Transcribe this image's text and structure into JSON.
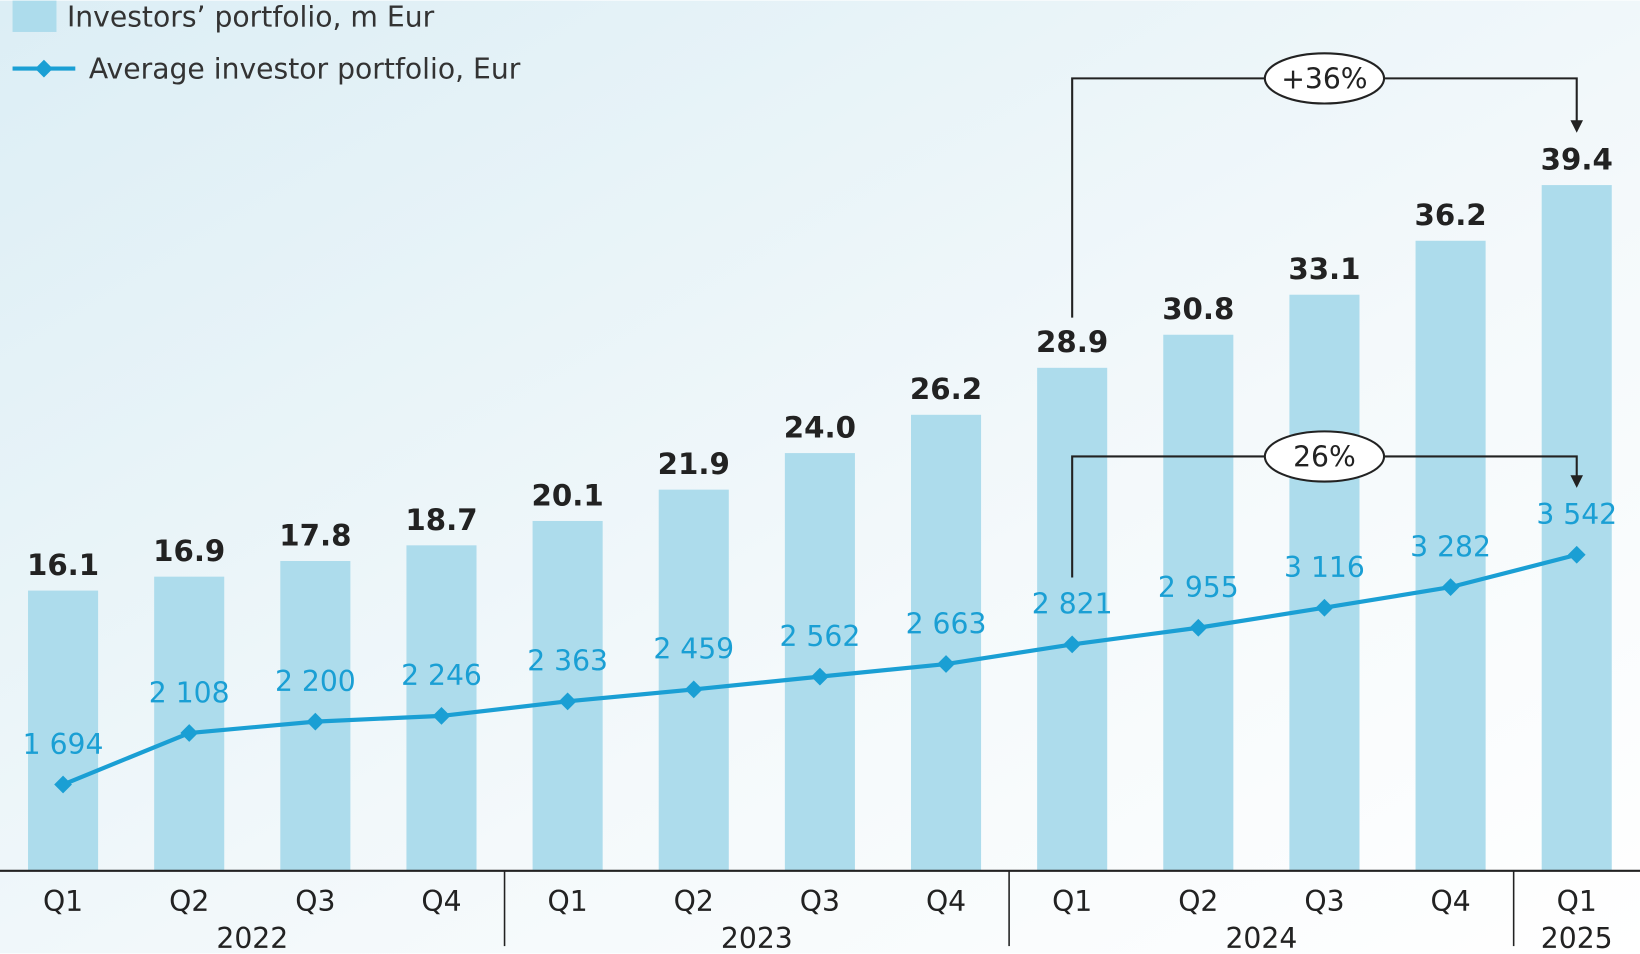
{
  "chart_data": {
    "type": "bar-line",
    "categories": [
      "Q1",
      "Q2",
      "Q3",
      "Q4",
      "Q1",
      "Q2",
      "Q3",
      "Q4",
      "Q1",
      "Q2",
      "Q3",
      "Q4",
      "Q1"
    ],
    "years": [
      "2022",
      "2023",
      "2024",
      "2025"
    ],
    "series": [
      {
        "name": "Investors’ portfolio, m Eur",
        "type": "bar",
        "color": "#addcec",
        "values": [
          16.1,
          16.9,
          17.8,
          18.7,
          20.1,
          21.9,
          24.0,
          26.2,
          28.9,
          30.8,
          33.1,
          36.2,
          39.4
        ],
        "value_labels": [
          "16.1",
          "16.9",
          "17.8",
          "18.7",
          "20.1",
          "21.9",
          "24.0",
          "26.2",
          "28.9",
          "30.8",
          "33.1",
          "36.2",
          "39.4"
        ]
      },
      {
        "name": "Average investor portfolio, Eur",
        "type": "line",
        "axis": "y2",
        "color": "#1a9fd4",
        "values": [
          1694,
          2108,
          2200,
          2246,
          2363,
          2459,
          2562,
          2663,
          2821,
          2955,
          3116,
          3282,
          3542
        ],
        "value_labels": [
          "1 694",
          "2 108",
          "2 200",
          "2 246",
          "2 363",
          "2 459",
          "2 562",
          "2 663",
          "2 821",
          "2 955",
          "3 116",
          "3 282",
          "3 542"
        ]
      }
    ],
    "ylim": [
      0,
      50
    ],
    "y2lim": [
      1000,
      8000
    ],
    "annotations": [
      {
        "text": "+36%",
        "series": 0,
        "from": 8,
        "to": 12
      },
      {
        "text": "26%",
        "series": 1,
        "from": 8,
        "to": 12
      }
    ]
  }
}
